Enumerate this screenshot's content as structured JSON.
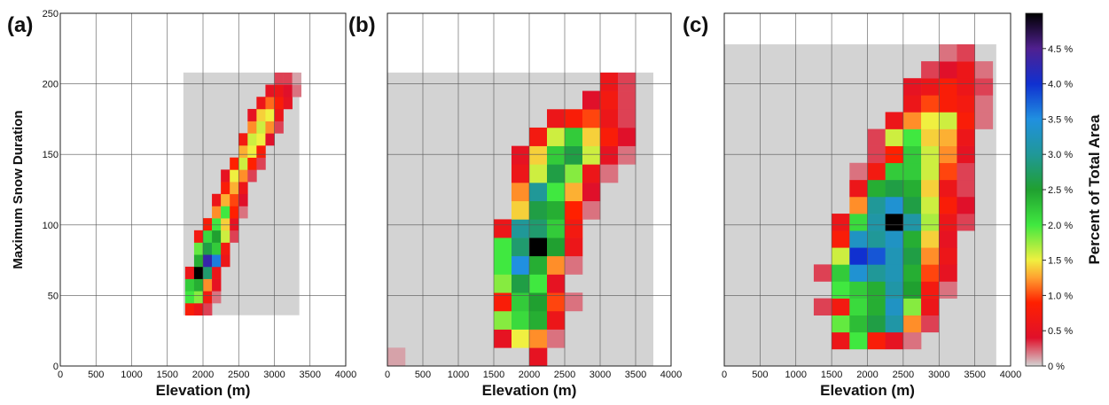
{
  "chart_data": [
    {
      "type": "heatmap",
      "panel_label": "(a)",
      "xlabel": "Elevation (m)",
      "ylabel": "Maximum Snow Duration",
      "xlim": [
        0,
        4000
      ],
      "xticks": [
        0,
        500,
        1000,
        1500,
        2000,
        2500,
        3000,
        3500,
        4000
      ],
      "ylim": [
        0,
        250
      ],
      "yticks": [
        0,
        50,
        100,
        150,
        200,
        250
      ],
      "show_yticklabels": true,
      "grid": true,
      "zero_region_x": [
        1725,
        3350
      ],
      "zero_region_y": [
        36,
        208
      ],
      "cell_width": 125,
      "cell_height": 8.6,
      "cell_x": [
        1750,
        1875,
        2000,
        1750,
        1875,
        2000,
        2125,
        1750,
        1875,
        2000,
        2125,
        1750,
        1875,
        2000,
        2125,
        1875,
        2000,
        2125,
        2250,
        1875,
        2000,
        2125,
        2250,
        1875,
        2000,
        2125,
        2250,
        2375,
        2000,
        2125,
        2250,
        2375,
        2125,
        2250,
        2375,
        2500,
        2125,
        2250,
        2375,
        2500,
        2250,
        2375,
        2500,
        2250,
        2375,
        2500,
        2625,
        2375,
        2500,
        2625,
        2750,
        2500,
        2625,
        2750,
        2500,
        2625,
        2750,
        2875,
        2625,
        2750,
        2875,
        3000,
        2625,
        2750,
        2875,
        3000,
        2750,
        2875,
        3000,
        3125,
        2875,
        3000,
        3125,
        3250,
        3000,
        3125,
        3250
      ],
      "cell_y": [
        36,
        36,
        36,
        44.6,
        44.6,
        44.6,
        44.6,
        53.2,
        53.2,
        53.2,
        53.2,
        61.8,
        61.8,
        61.8,
        61.8,
        70.4,
        70.4,
        70.4,
        70.4,
        79,
        79,
        79,
        79,
        87.6,
        87.6,
        87.6,
        87.6,
        87.6,
        96.2,
        96.2,
        96.2,
        96.2,
        104.8,
        104.8,
        104.8,
        104.8,
        113.4,
        113.4,
        113.4,
        113.4,
        122,
        122,
        122,
        130.6,
        130.6,
        130.6,
        130.6,
        139.2,
        139.2,
        139.2,
        139.2,
        147.8,
        147.8,
        147.8,
        156.4,
        156.4,
        156.4,
        156.4,
        165,
        165,
        165,
        165,
        173.6,
        173.6,
        173.6,
        173.6,
        182.2,
        182.2,
        182.2,
        182.2,
        190.8,
        190.8,
        190.8,
        190.8,
        199.4,
        199.4,
        199.4
      ],
      "values": [
        0.8,
        0.6,
        0.3,
        2.0,
        1.8,
        0.7,
        0.2,
        2.2,
        2.4,
        1.2,
        0.5,
        0.6,
        5.0,
        2.8,
        0.6,
        2.4,
        4.3,
        3.6,
        0.6,
        1.9,
        2.6,
        2.2,
        0.7,
        0.7,
        2.1,
        2.5,
        1.6,
        0.3,
        0.8,
        2.0,
        1.4,
        0.5,
        1.2,
        2.0,
        0.9,
        0.2,
        0.6,
        1.3,
        1.0,
        0.4,
        0.8,
        1.3,
        0.6,
        0.5,
        1.5,
        1.2,
        0.3,
        0.9,
        1.6,
        0.9,
        0.3,
        1.3,
        1.5,
        0.8,
        0.7,
        1.6,
        1.5,
        0.4,
        1.2,
        1.6,
        1.2,
        0.3,
        0.5,
        1.4,
        1.5,
        0.6,
        0.6,
        1.1,
        0.8,
        0.5,
        0.5,
        0.6,
        0.4,
        0.2,
        0.3,
        0.3,
        0.1
      ]
    },
    {
      "type": "heatmap",
      "panel_label": "(b)",
      "xlabel": "Elevation (m)",
      "xlim": [
        0,
        4000
      ],
      "xticks": [
        0,
        500,
        1000,
        1500,
        2000,
        2500,
        3000,
        3500,
        4000
      ],
      "ylim": [
        0,
        250
      ],
      "yticks": [
        0,
        50,
        100,
        150,
        200,
        250
      ],
      "show_yticklabels": false,
      "grid": true,
      "zero_region_x": [
        0,
        3750
      ],
      "zero_region_y": [
        0,
        208
      ],
      "cell_width": 250,
      "cell_height": 13,
      "cell_x": [
        0,
        2000,
        1500,
        1750,
        2000,
        2250,
        1500,
        1750,
        2000,
        2250,
        1500,
        1750,
        2000,
        2250,
        2500,
        1500,
        1750,
        2000,
        2250,
        1500,
        1750,
        2000,
        2250,
        2500,
        1500,
        1750,
        2000,
        2250,
        2500,
        1500,
        1750,
        2000,
        2250,
        2500,
        1750,
        2000,
        2250,
        2500,
        2750,
        1750,
        2000,
        2250,
        2500,
        2750,
        1750,
        2000,
        2250,
        2500,
        2750,
        3000,
        1750,
        2000,
        2250,
        2500,
        2750,
        3000,
        3250,
        2000,
        2250,
        2500,
        2750,
        3000,
        3250,
        2250,
        2500,
        2750,
        3000,
        3250,
        2750,
        3000,
        3250,
        3000,
        3250
      ],
      "cell_y": [
        0,
        0,
        13,
        13,
        13,
        13,
        26,
        26,
        26,
        26,
        39,
        39,
        39,
        39,
        39,
        52,
        52,
        52,
        52,
        65,
        65,
        65,
        65,
        65,
        78,
        78,
        78,
        78,
        78,
        91,
        91,
        91,
        91,
        91,
        104,
        104,
        104,
        104,
        104,
        117,
        117,
        117,
        117,
        117,
        130,
        130,
        130,
        130,
        130,
        130,
        143,
        143,
        143,
        143,
        143,
        143,
        143,
        156,
        156,
        156,
        156,
        156,
        156,
        169,
        169,
        169,
        169,
        169,
        182,
        182,
        182,
        195,
        195
      ],
      "values": [
        0.1,
        0.5,
        0.5,
        1.5,
        1.2,
        0.2,
        1.8,
        2.1,
        2.4,
        0.6,
        0.8,
        2.2,
        2.5,
        1.0,
        0.2,
        1.8,
        2.6,
        2.0,
        0.5,
        2.0,
        3.5,
        2.4,
        1.2,
        0.2,
        2.0,
        2.8,
        5.0,
        2.5,
        0.6,
        0.6,
        3.0,
        2.8,
        2.2,
        0.7,
        1.4,
        2.6,
        2.4,
        0.9,
        0.2,
        1.2,
        3.0,
        2.0,
        1.3,
        0.4,
        0.6,
        1.6,
        2.6,
        1.8,
        0.6,
        0.2,
        0.5,
        1.4,
        2.2,
        2.6,
        1.6,
        0.5,
        0.2,
        0.7,
        1.6,
        2.2,
        1.4,
        0.8,
        0.4,
        0.6,
        0.8,
        1.0,
        0.6,
        0.3,
        0.4,
        0.7,
        0.3,
        0.6,
        0.3
      ]
    },
    {
      "type": "heatmap",
      "panel_label": "(c)",
      "xlabel": "Elevation (m)",
      "xlim": [
        0,
        4000
      ],
      "xticks": [
        0,
        500,
        1000,
        1500,
        2000,
        2500,
        3000,
        3500,
        4000
      ],
      "ylim": [
        0,
        250
      ],
      "yticks": [
        0,
        50,
        100,
        150,
        200,
        250
      ],
      "show_yticklabels": false,
      "grid": true,
      "zero_region_x": [
        0,
        3800
      ],
      "zero_region_y": [
        0,
        228
      ],
      "cell_width": 250,
      "cell_height": 12,
      "cell_x": [
        1500,
        1750,
        2000,
        2250,
        2500,
        1500,
        1750,
        2000,
        2250,
        2500,
        2750,
        1250,
        1500,
        1750,
        2000,
        2250,
        2500,
        2750,
        1500,
        1750,
        2000,
        2250,
        2500,
        2750,
        3000,
        1250,
        1500,
        1750,
        2000,
        2250,
        2500,
        2750,
        3000,
        1500,
        1750,
        2000,
        2250,
        2500,
        2750,
        3000,
        1500,
        1750,
        2000,
        2250,
        2500,
        2750,
        3000,
        1500,
        1750,
        2000,
        2250,
        2500,
        2750,
        3000,
        3250,
        1750,
        2000,
        2250,
        2500,
        2750,
        3000,
        3250,
        1750,
        2000,
        2250,
        2500,
        2750,
        3000,
        3250,
        1750,
        2000,
        2250,
        2500,
        2750,
        3000,
        3250,
        2000,
        2250,
        2500,
        2750,
        3000,
        3250,
        2000,
        2250,
        2500,
        2750,
        3000,
        3250,
        2250,
        2500,
        2750,
        3000,
        3250,
        3500,
        2500,
        2750,
        3000,
        3250,
        3500,
        2500,
        2750,
        3000,
        3250,
        3500,
        2750,
        3000,
        3250,
        3500,
        3000,
        3250
      ],
      "cell_y": [
        12,
        12,
        12,
        12,
        12,
        24,
        24,
        24,
        24,
        24,
        24,
        36,
        36,
        36,
        36,
        36,
        36,
        36,
        48,
        48,
        48,
        48,
        48,
        48,
        48,
        60,
        60,
        60,
        60,
        60,
        60,
        60,
        60,
        72,
        72,
        72,
        72,
        72,
        72,
        72,
        84,
        84,
        84,
        84,
        84,
        84,
        84,
        96,
        96,
        96,
        96,
        96,
        96,
        96,
        96,
        108,
        108,
        108,
        108,
        108,
        108,
        108,
        120,
        120,
        120,
        120,
        120,
        120,
        120,
        132,
        132,
        132,
        132,
        132,
        132,
        132,
        144,
        144,
        144,
        144,
        144,
        144,
        156,
        156,
        156,
        156,
        156,
        156,
        168,
        168,
        168,
        168,
        168,
        168,
        180,
        180,
        180,
        180,
        180,
        192,
        192,
        192,
        192,
        192,
        204,
        204,
        204,
        204,
        216,
        216
      ],
      "values": [
        0.6,
        2.0,
        0.8,
        0.5,
        0.2,
        1.9,
        2.3,
        2.6,
        3.1,
        1.2,
        0.3,
        0.3,
        0.7,
        2.1,
        2.4,
        3.3,
        1.8,
        0.6,
        2.0,
        2.2,
        2.4,
        3.1,
        2.5,
        0.7,
        0.2,
        0.3,
        2.2,
        3.4,
        3.0,
        3.2,
        2.4,
        1.0,
        0.5,
        1.6,
        4.0,
        3.8,
        3.2,
        2.6,
        1.2,
        0.6,
        0.8,
        3.3,
        3.0,
        3.3,
        2.4,
        1.4,
        0.5,
        0.6,
        2.1,
        3.1,
        5.0,
        3.1,
        1.7,
        0.6,
        0.3,
        1.2,
        3.0,
        3.4,
        2.6,
        1.6,
        0.8,
        0.4,
        0.6,
        2.4,
        2.6,
        2.4,
        1.4,
        0.6,
        0.3,
        0.2,
        0.7,
        2.2,
        2.2,
        1.6,
        1.0,
        0.3,
        0.3,
        0.9,
        2.2,
        1.6,
        1.2,
        0.5,
        0.3,
        1.6,
        2.0,
        1.4,
        1.3,
        0.6,
        0.6,
        1.2,
        1.5,
        1.6,
        0.8,
        0.2,
        0.6,
        1.0,
        0.8,
        0.7,
        0.2,
        0.5,
        0.6,
        0.8,
        0.6,
        0.3,
        0.3,
        0.4,
        0.6,
        0.2,
        0.2,
        0.3
      ]
    },
    {
      "type": "colorbar",
      "label": "Percent of Total Area",
      "ylim": [
        0,
        5
      ],
      "yticks": [
        {
          "value": 0,
          "label": "0 %"
        },
        {
          "value": 0.5,
          "label": "0.5 %"
        },
        {
          "value": 1.0,
          "label": "1.0 %"
        },
        {
          "value": 1.5,
          "label": "1.5 %"
        },
        {
          "value": 2.0,
          "label": "2.0 %"
        },
        {
          "value": 2.5,
          "label": "2.5 %"
        },
        {
          "value": 3.0,
          "label": "3.0 %"
        },
        {
          "value": 3.5,
          "label": "3.5 %"
        },
        {
          "value": 4.0,
          "label": "4.0 %"
        },
        {
          "value": 4.5,
          "label": "4.5 %"
        }
      ],
      "colorscale": [
        [
          0,
          "#d3d3d3"
        ],
        [
          0.4,
          "#e0102a"
        ],
        [
          0.9,
          "#ff2000"
        ],
        [
          1.25,
          "#ffa030"
        ],
        [
          1.5,
          "#f0f040"
        ],
        [
          2.0,
          "#40e840"
        ],
        [
          2.5,
          "#20a030"
        ],
        [
          3.0,
          "#209898"
        ],
        [
          3.5,
          "#2090e0"
        ],
        [
          4.0,
          "#1030d0"
        ],
        [
          4.5,
          "#502090"
        ],
        [
          5.0,
          "#000000"
        ]
      ]
    }
  ]
}
